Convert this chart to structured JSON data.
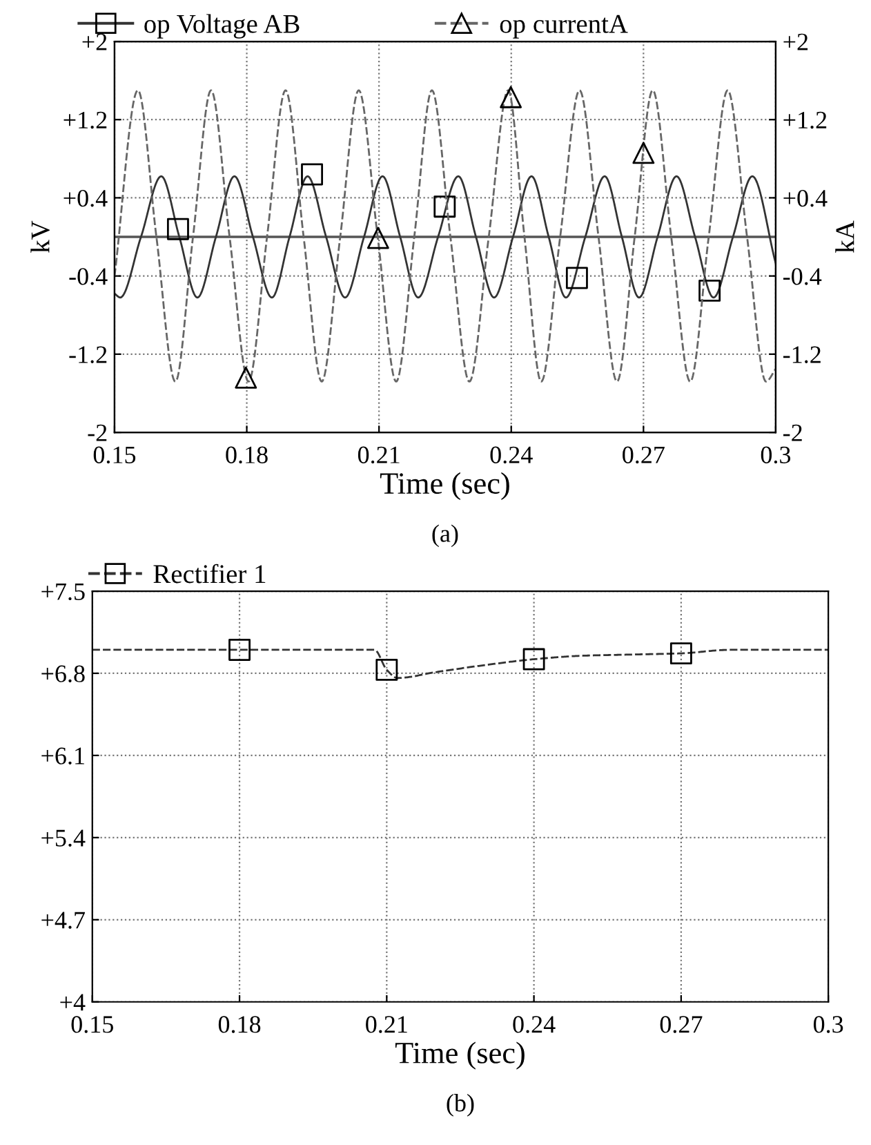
{
  "chart_data": [
    {
      "type": "line",
      "xlabel": "Time (sec)",
      "ylabel": "kV",
      "y2label": "kA",
      "annotations": [
        "(a)"
      ],
      "xlim": [
        0.15,
        0.3
      ],
      "xticks": [
        0.15,
        0.18,
        0.21,
        0.24,
        0.27,
        0.3
      ],
      "ylim": [
        -2,
        2
      ],
      "yticks": [
        {
          "value": -2,
          "label": "-2"
        },
        {
          "value": -1.2,
          "label": "-1.2"
        },
        {
          "value": -0.4,
          "label": "-0.4"
        },
        {
          "value": 0.4,
          "label": "+0.4"
        },
        {
          "value": 1.2,
          "label": "+1.2"
        },
        {
          "value": 2,
          "label": "+2"
        }
      ],
      "y2lim": [
        -2,
        2
      ],
      "y2ticks": [
        {
          "value": -2,
          "label": "-2"
        },
        {
          "value": -1.2,
          "label": "-1.2"
        },
        {
          "value": -0.4,
          "label": "-0.4"
        },
        {
          "value": 0.4,
          "label": "+0.4"
        },
        {
          "value": 1.2,
          "label": "+1.2"
        },
        {
          "value": 2,
          "label": "+2"
        }
      ],
      "grid": true,
      "legend": "top",
      "ref_lines": [
        {
          "axis": "y",
          "value": 0,
          "color": "#555555",
          "line_style": "solid"
        }
      ],
      "series": [
        {
          "name": "op Voltage AB",
          "color": "#333333",
          "line_style": "solid",
          "x": [
            0.15,
            0.1513,
            0.156,
            0.1606,
            0.1647,
            0.1688,
            0.173,
            0.1772,
            0.1814,
            0.1857,
            0.1897,
            0.1938,
            0.198,
            0.2023,
            0.2066,
            0.2108,
            0.2148,
            0.2189,
            0.2234,
            0.228,
            0.232,
            0.2361,
            0.2404,
            0.2446,
            0.2485,
            0.2524,
            0.2568,
            0.2612,
            0.2651,
            0.269,
            0.2732,
            0.2775,
            0.2817,
            0.2859,
            0.2903,
            0.2947,
            0.3
          ],
          "values": [
            -0.58,
            -0.62,
            0,
            0.62,
            0,
            -0.62,
            0,
            0.62,
            0,
            -0.62,
            0,
            0.62,
            0,
            -0.62,
            0,
            0.62,
            0,
            -0.62,
            0,
            0.62,
            0,
            -0.62,
            0,
            0.62,
            0,
            -0.62,
            0,
            0.62,
            0,
            -0.62,
            0,
            0.62,
            0,
            -0.62,
            0,
            0.62,
            -0.27
          ]
        },
        {
          "name": "op currentA",
          "color": "#666666",
          "line_style": "dashed",
          "axis": "y2",
          "x": [
            0.15,
            0.1553,
            0.1595,
            0.1638,
            0.1678,
            0.1719,
            0.1761,
            0.1804,
            0.1846,
            0.1888,
            0.1929,
            0.197,
            0.2012,
            0.2054,
            0.2097,
            0.2139,
            0.218,
            0.222,
            0.2262,
            0.2305,
            0.2349,
            0.2393,
            0.243,
            0.2468,
            0.2511,
            0.2555,
            0.2598,
            0.264,
            0.268,
            0.2721,
            0.2763,
            0.2806,
            0.2848,
            0.2891,
            0.2935,
            0.2978,
            0.3
          ],
          "values": [
            -0.4,
            1.5,
            0,
            -1.48,
            0,
            1.5,
            0,
            -1.48,
            0,
            1.5,
            0,
            -1.48,
            0,
            1.5,
            0,
            -1.48,
            0,
            1.5,
            0,
            -1.48,
            0,
            1.5,
            0,
            -1.48,
            0,
            1.5,
            0,
            -1.48,
            0,
            1.5,
            0,
            -1.48,
            0,
            1.5,
            0,
            -1.48,
            -1.35
          ]
        },
        {
          "type": "scatter",
          "color": "#000000",
          "marker": "square",
          "x": [
            0.1644,
            0.1948,
            0.2249,
            0.2549,
            0.285
          ],
          "values": [
            0.08,
            0.64,
            0.31,
            -0.42,
            -0.55
          ]
        },
        {
          "type": "scatter",
          "color": "#000000",
          "marker": "triangle",
          "axis": "y2",
          "x": [
            0.1798,
            0.2098,
            0.2399,
            0.27
          ],
          "values": [
            -1.44,
            -0.01,
            1.43,
            0.86
          ]
        }
      ]
    },
    {
      "type": "line",
      "xlabel": "Time (sec)",
      "annotations": [
        "(b)"
      ],
      "xlim": [
        0.15,
        0.3
      ],
      "xticks": [
        0.15,
        0.18,
        0.21,
        0.24,
        0.27,
        0.3
      ],
      "ylim": [
        4,
        7.5
      ],
      "yticks": [
        {
          "value": 4,
          "label": "+4"
        },
        {
          "value": 4.7,
          "label": "+4.7"
        },
        {
          "value": 5.4,
          "label": "+5.4"
        },
        {
          "value": 6.1,
          "label": "+6.1"
        },
        {
          "value": 6.8,
          "label": "+6.8"
        },
        {
          "value": 7.5,
          "label": "+7.5"
        }
      ],
      "grid": true,
      "legend": "top left",
      "series": [
        {
          "name": "Rectifier 1",
          "color": "#333333",
          "line_style": "dashed",
          "x": [
            0.15,
            0.2075,
            0.21,
            0.2122,
            0.22,
            0.23,
            0.24,
            0.25,
            0.26,
            0.27,
            0.28,
            0.3
          ],
          "values": [
            7.0,
            7.0,
            6.83,
            6.76,
            6.81,
            6.87,
            6.92,
            6.95,
            6.96,
            6.97,
            7.0,
            7.0
          ]
        },
        {
          "type": "scatter",
          "color": "#000000",
          "marker": "square",
          "x": [
            0.18,
            0.21,
            0.24,
            0.27
          ],
          "values": [
            7.0,
            6.83,
            6.92,
            6.97
          ]
        }
      ]
    }
  ]
}
